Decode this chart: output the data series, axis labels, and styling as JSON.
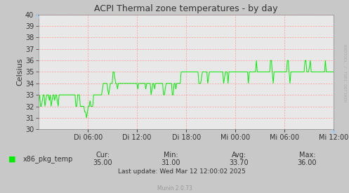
{
  "title": "ACPI Thermal zone temperatures - by day",
  "ylabel": "Celsius",
  "ylim": [
    30,
    40
  ],
  "yticks": [
    30,
    31,
    32,
    33,
    34,
    35,
    36,
    37,
    38,
    39,
    40
  ],
  "xlabels": [
    "Di 06:00",
    "Di 12:00",
    "Di 18:00",
    "Mi 00:00",
    "Mi 06:00",
    "Mi 12:00"
  ],
  "xtick_positions": [
    0.1667,
    0.3333,
    0.5,
    0.6667,
    0.8333,
    1.0
  ],
  "line_color": "#00ee00",
  "background_color": "#c8c8c8",
  "plot_bg_color": "#e8e8e8",
  "grid_color": "#ff9999",
  "title_color": "#333333",
  "label_color": "#333333",
  "legend_label": "x86_pkg_temp",
  "cur_val": "35.00",
  "min_val": "31.00",
  "avg_val": "33.70",
  "max_val": "36.00",
  "last_update": "Last update: Wed Mar 12 12:00:02 2025",
  "munin_text": "Munin 2.0.73",
  "watermark": "RRDTOOL / TOBI OETIKER",
  "arrow_color": "#aaccee",
  "data_x": [
    0.0,
    0.003,
    0.006,
    0.009,
    0.012,
    0.015,
    0.018,
    0.021,
    0.024,
    0.027,
    0.03,
    0.033,
    0.036,
    0.039,
    0.042,
    0.045,
    0.048,
    0.051,
    0.054,
    0.057,
    0.06,
    0.063,
    0.066,
    0.069,
    0.072,
    0.075,
    0.078,
    0.081,
    0.084,
    0.087,
    0.09,
    0.093,
    0.096,
    0.099,
    0.102,
    0.105,
    0.108,
    0.111,
    0.114,
    0.117,
    0.12,
    0.123,
    0.126,
    0.129,
    0.132,
    0.135,
    0.138,
    0.141,
    0.144,
    0.147,
    0.15,
    0.153,
    0.156,
    0.159,
    0.162,
    0.165,
    0.168,
    0.171,
    0.174,
    0.177,
    0.18,
    0.183,
    0.186,
    0.189,
    0.192,
    0.195,
    0.198,
    0.201,
    0.204,
    0.207,
    0.21,
    0.213,
    0.216,
    0.219,
    0.222,
    0.225,
    0.228,
    0.231,
    0.234,
    0.237,
    0.24,
    0.243,
    0.246,
    0.249,
    0.252,
    0.255,
    0.258,
    0.261,
    0.264,
    0.267,
    0.27,
    0.273,
    0.276,
    0.279,
    0.282,
    0.285,
    0.288,
    0.291,
    0.294,
    0.297,
    0.3,
    0.303,
    0.306,
    0.309,
    0.312,
    0.315,
    0.318,
    0.321,
    0.324,
    0.327,
    0.33,
    0.333,
    0.336,
    0.339,
    0.342,
    0.345,
    0.348,
    0.351,
    0.354,
    0.357,
    0.36,
    0.363,
    0.366,
    0.369,
    0.372,
    0.375,
    0.378,
    0.381,
    0.384,
    0.387,
    0.39,
    0.393,
    0.396,
    0.399,
    0.402,
    0.405,
    0.408,
    0.411,
    0.414,
    0.417,
    0.42,
    0.423,
    0.426,
    0.429,
    0.432,
    0.435,
    0.438,
    0.441,
    0.444,
    0.447,
    0.45,
    0.453,
    0.456,
    0.459,
    0.462,
    0.465,
    0.468,
    0.471,
    0.474,
    0.477,
    0.48,
    0.483,
    0.486,
    0.489,
    0.492,
    0.495,
    0.498,
    0.501,
    0.504,
    0.507,
    0.51,
    0.513,
    0.516,
    0.519,
    0.522,
    0.525,
    0.528,
    0.531,
    0.534,
    0.537,
    0.54,
    0.543,
    0.546,
    0.549,
    0.552,
    0.555,
    0.558,
    0.561,
    0.564,
    0.567,
    0.57,
    0.573,
    0.576,
    0.579,
    0.582,
    0.585,
    0.588,
    0.591,
    0.594,
    0.597,
    0.6,
    0.603,
    0.606,
    0.609,
    0.612,
    0.615,
    0.618,
    0.621,
    0.624,
    0.627,
    0.63,
    0.633,
    0.636,
    0.639,
    0.642,
    0.645,
    0.648,
    0.651,
    0.654,
    0.657,
    0.66,
    0.663,
    0.666,
    0.669,
    0.672,
    0.675,
    0.678,
    0.681,
    0.684,
    0.687,
    0.69,
    0.693,
    0.696,
    0.699,
    0.702,
    0.705,
    0.708,
    0.711,
    0.714,
    0.717,
    0.72,
    0.723,
    0.726,
    0.729,
    0.732,
    0.735,
    0.738,
    0.741,
    0.744,
    0.747,
    0.75,
    0.753,
    0.756,
    0.759,
    0.762,
    0.765,
    0.768,
    0.771,
    0.774,
    0.777,
    0.78,
    0.783,
    0.786,
    0.789,
    0.792,
    0.795,
    0.798,
    0.801,
    0.804,
    0.807,
    0.81,
    0.813,
    0.816,
    0.819,
    0.822,
    0.825,
    0.828,
    0.831,
    0.834,
    0.837,
    0.84,
    0.843,
    0.846,
    0.849,
    0.852,
    0.855,
    0.858,
    0.861,
    0.864,
    0.867,
    0.87,
    0.873,
    0.876,
    0.879,
    0.882,
    0.885,
    0.888,
    0.891,
    0.894,
    0.897,
    0.9,
    0.903,
    0.906,
    0.909,
    0.912,
    0.915,
    0.918,
    0.921,
    0.924,
    0.927,
    0.93,
    0.933,
    0.936,
    0.939,
    0.942,
    0.945,
    0.948,
    0.951,
    0.954,
    0.957,
    0.96,
    0.963,
    0.966,
    0.969,
    0.972,
    0.975,
    0.978,
    0.981,
    0.984,
    0.987,
    0.99,
    0.993,
    0.996,
    1.0
  ],
  "data_y": [
    32.5,
    33.0,
    32.0,
    32.0,
    32.5,
    33.0,
    33.0,
    32.0,
    32.5,
    33.0,
    33.0,
    33.0,
    32.5,
    33.0,
    32.0,
    32.5,
    33.0,
    33.0,
    32.5,
    33.0,
    33.0,
    32.5,
    32.0,
    33.0,
    33.0,
    33.0,
    33.0,
    33.0,
    33.0,
    33.0,
    33.0,
    33.0,
    33.0,
    33.0,
    33.0,
    33.0,
    33.0,
    33.0,
    33.0,
    33.0,
    33.0,
    33.0,
    32.0,
    32.0,
    33.0,
    33.0,
    33.0,
    32.0,
    32.0,
    32.0,
    32.0,
    32.0,
    31.5,
    31.5,
    31.0,
    31.5,
    32.0,
    32.0,
    32.5,
    32.0,
    32.0,
    32.0,
    33.0,
    33.0,
    33.0,
    33.0,
    33.0,
    33.0,
    33.0,
    33.0,
    33.0,
    33.0,
    33.5,
    34.0,
    34.0,
    34.0,
    34.0,
    34.0,
    33.5,
    33.0,
    33.5,
    34.0,
    34.0,
    34.0,
    35.0,
    35.0,
    34.5,
    34.0,
    34.0,
    33.5,
    34.0,
    34.0,
    34.0,
    34.0,
    34.0,
    34.0,
    34.0,
    34.0,
    34.0,
    34.0,
    34.0,
    34.0,
    34.0,
    34.0,
    34.0,
    34.0,
    34.0,
    34.0,
    34.0,
    34.0,
    34.0,
    34.0,
    33.5,
    34.0,
    34.0,
    34.0,
    34.0,
    34.0,
    34.0,
    34.0,
    34.0,
    33.5,
    34.0,
    34.0,
    34.0,
    34.0,
    34.0,
    33.0,
    33.5,
    34.0,
    34.0,
    33.5,
    34.0,
    34.0,
    34.0,
    34.0,
    34.0,
    34.0,
    34.0,
    34.0,
    34.0,
    33.0,
    33.0,
    33.5,
    34.0,
    34.0,
    34.0,
    34.0,
    34.0,
    34.0,
    34.0,
    33.0,
    33.0,
    34.0,
    34.0,
    33.5,
    34.0,
    34.0,
    34.0,
    34.0,
    34.0,
    35.0,
    35.0,
    35.0,
    35.0,
    35.0,
    35.0,
    35.0,
    35.0,
    35.0,
    35.0,
    35.0,
    35.0,
    35.0,
    35.0,
    35.0,
    35.0,
    35.0,
    35.0,
    35.0,
    35.0,
    34.0,
    34.0,
    34.0,
    34.5,
    35.0,
    35.0,
    35.0,
    35.0,
    35.0,
    35.0,
    34.0,
    34.5,
    35.0,
    35.0,
    35.0,
    35.0,
    35.0,
    35.0,
    35.0,
    35.0,
    35.0,
    35.0,
    35.0,
    35.0,
    35.0,
    35.0,
    35.0,
    35.0,
    34.0,
    34.5,
    35.0,
    35.0,
    35.0,
    34.0,
    35.0,
    35.0,
    35.0,
    35.0,
    35.0,
    35.0,
    35.0,
    35.0,
    35.0,
    35.0,
    35.0,
    35.0,
    35.0,
    35.0,
    35.0,
    35.0,
    35.0,
    35.0,
    35.0,
    35.0,
    35.0,
    35.0,
    34.0,
    35.0,
    35.0,
    35.0,
    35.0,
    35.0,
    35.0,
    35.0,
    35.0,
    36.0,
    35.0,
    35.0,
    35.0,
    35.0,
    35.0,
    35.0,
    35.0,
    35.0,
    35.0,
    35.0,
    35.0,
    35.0,
    35.0,
    35.0,
    35.0,
    36.0,
    36.0,
    35.0,
    34.0,
    35.0,
    35.0,
    35.0,
    35.0,
    35.0,
    35.0,
    35.0,
    35.0,
    35.0,
    35.0,
    35.0,
    35.0,
    35.0,
    35.0,
    35.0,
    36.0,
    36.0,
    35.0,
    34.0,
    35.0,
    35.0,
    35.0,
    35.0,
    35.0,
    35.0,
    35.0,
    35.0,
    35.0,
    35.0,
    35.0,
    35.0,
    35.0,
    35.0,
    35.0,
    35.0,
    36.0,
    36.0,
    35.0,
    35.0,
    35.0,
    35.5,
    36.0,
    35.0,
    35.0,
    35.0,
    35.0,
    35.0,
    35.0,
    35.0,
    35.0,
    35.0,
    35.0,
    35.0,
    35.0,
    35.0,
    35.0,
    35.0,
    35.0,
    36.0,
    35.0,
    35.0,
    35.0,
    35.0,
    35.0,
    35.0,
    35.0,
    35.0,
    35.0
  ]
}
